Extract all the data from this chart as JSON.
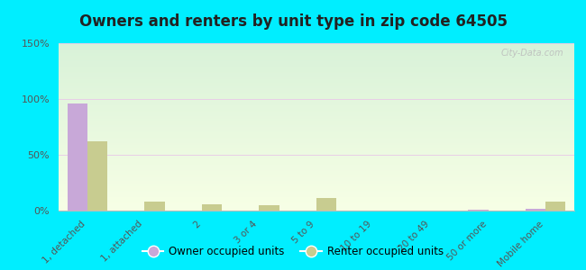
{
  "title": "Owners and renters by unit type in zip code 64505",
  "categories": [
    "1, detached",
    "1, attached",
    "2",
    "3 or 4",
    "5 to 9",
    "10 to 19",
    "20 to 49",
    "50 or more",
    "Mobile home"
  ],
  "owner_values": [
    96,
    0,
    0,
    0,
    0,
    0,
    0,
    0.5,
    2
  ],
  "renter_values": [
    62,
    8,
    6,
    5,
    11,
    0,
    0,
    0,
    8
  ],
  "owner_color": "#c8a8d8",
  "renter_color": "#c8cc90",
  "background_outer": "#00eeff",
  "ylim": [
    0,
    150
  ],
  "yticks": [
    0,
    50,
    100,
    150
  ],
  "ytick_labels": [
    "0%",
    "50%",
    "100%",
    "150%"
  ],
  "watermark": "City-Data.com",
  "legend_owner": "Owner occupied units",
  "legend_renter": "Renter occupied units",
  "bar_width": 0.35,
  "title_fontsize": 12
}
